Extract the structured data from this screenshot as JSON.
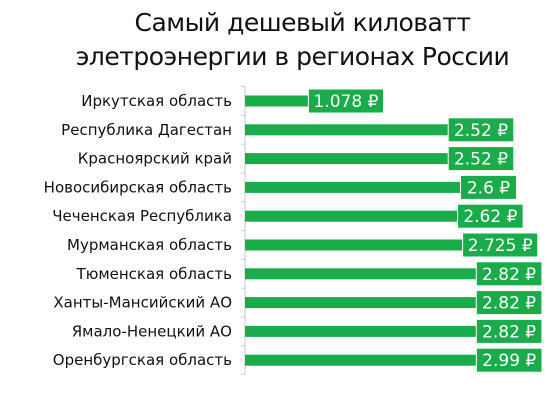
{
  "title_line1": "Самый дешевый киловатт",
  "title_line2": "элетроэнергии в регионах России",
  "colors": {
    "bar": "#1aab4a",
    "label_bg": "#1aab4a",
    "label_text": "#ffffff",
    "grid": "#c9c9c9"
  },
  "chart_data": {
    "type": "bar",
    "orientation": "horizontal",
    "title": "Самый дешевый киловатт элетроэнергии в регионах России",
    "categories": [
      "Иркутская область",
      "Республика Дагестан",
      "Красноярский край",
      "Новосибирская область",
      "Чеченская Республика",
      "Мурманская область",
      "Тюменская область",
      "Ханты-Мансийский АО",
      "Ямало-Ненецкий АО",
      "Оренбургская область"
    ],
    "values": [
      1.078,
      2.52,
      2.52,
      2.6,
      2.62,
      2.725,
      2.82,
      2.82,
      2.82,
      2.99
    ],
    "value_labels": [
      "1.078 ₽",
      "2.52 ₽",
      "2.52 ₽",
      "2.6 ₽",
      "2.62 ₽",
      "2.725 ₽",
      "2.82 ₽",
      "2.82 ₽",
      "2.82 ₽",
      "2.99 ₽"
    ],
    "xlim": [
      0,
      3.15
    ],
    "grid": true
  }
}
